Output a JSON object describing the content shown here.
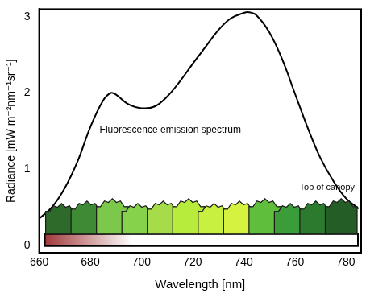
{
  "chart_data": {
    "type": "line",
    "x_label": "Wavelength [nm]",
    "y_label": "Radiance [mW m⁻²nm⁻¹sr⁻¹]",
    "annotations": [
      "Fluorescence emission spectrum",
      "Top of canopy"
    ],
    "x": [
      660,
      665,
      670,
      675,
      680,
      685,
      688,
      690,
      695,
      700,
      705,
      710,
      715,
      720,
      725,
      730,
      735,
      740,
      742,
      745,
      750,
      755,
      760,
      765,
      770,
      775,
      780,
      785
    ],
    "values": [
      0.35,
      0.5,
      0.75,
      1.1,
      1.55,
      1.9,
      2.0,
      1.98,
      1.85,
      1.8,
      1.82,
      1.95,
      2.15,
      2.38,
      2.6,
      2.82,
      2.98,
      3.05,
      3.06,
      3.02,
      2.8,
      2.45,
      2.0,
      1.55,
      1.15,
      0.85,
      0.62,
      0.48
    ],
    "color": "#000000",
    "xlim": [
      660,
      786
    ],
    "xticks": [
      660,
      680,
      700,
      720,
      740,
      760,
      780
    ],
    "ylim": [
      -0.1,
      3.1
    ],
    "yticks": [
      0,
      1,
      2,
      3
    ],
    "grid": false
  }
}
